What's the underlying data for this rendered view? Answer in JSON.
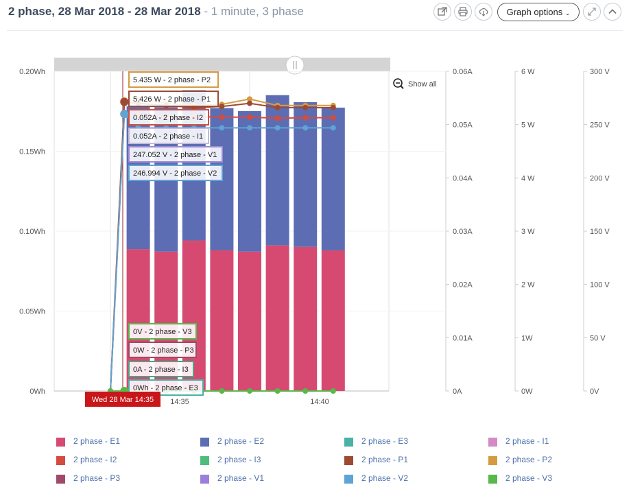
{
  "header": {
    "title_bold": "2 phase, 28 Mar 2018 - 28 Mar 2018",
    "title_light": " - 1 minute, 3 phase",
    "graph_options_label": "Graph options"
  },
  "chart_data": {
    "type": "bar",
    "x_tick_labels": [
      "14:35",
      "14:40"
    ],
    "crosshair_label": "Wed 28 Mar 14:35",
    "show_all_label": "Show all",
    "axes": [
      {
        "id": "energy",
        "ticks": [
          "0Wh",
          "0.05Wh",
          "0.10Wh",
          "0.15Wh",
          "0.20Wh"
        ],
        "ylim": [
          0,
          0.2
        ],
        "position": "left"
      },
      {
        "id": "current",
        "ticks": [
          "0A",
          "0.01A",
          "0.02A",
          "0.03A",
          "0.04A",
          "0.05A",
          "0.06A"
        ],
        "ylim": [
          0,
          0.06
        ],
        "position": "right"
      },
      {
        "id": "power",
        "ticks": [
          "0W",
          "1W",
          "2 W",
          "3 W",
          "4 W",
          "5 W",
          "6 W"
        ],
        "ylim": [
          0,
          6
        ],
        "position": "right"
      },
      {
        "id": "voltage",
        "ticks": [
          "0V",
          "50 V",
          "100 V",
          "150 V",
          "200 V",
          "250 V",
          "300 V"
        ],
        "ylim": [
          0,
          300
        ],
        "position": "right"
      }
    ],
    "x_minutes": [
      14.0,
      14.5,
      15,
      16,
      17,
      18,
      19,
      20,
      21,
      22
    ],
    "stacked_bars": [
      {
        "name": "2 phase - E1",
        "axis": "energy",
        "color": "#d64a72",
        "values": [
          0,
          0,
          0.0888,
          0.0872,
          0.0942,
          0.088,
          0.0872,
          0.0911,
          0.0902,
          0.088
        ]
      },
      {
        "name": "2 phase - E2",
        "axis": "energy",
        "color": "#5c6db3",
        "values": [
          0,
          0,
          0.0893,
          0.0904,
          0.094,
          0.089,
          0.0879,
          0.094,
          0.0905,
          0.0893
        ]
      }
    ],
    "lines": [
      {
        "name": "2 phase - P2",
        "axis": "power",
        "color": "#d59a42",
        "values": [
          0,
          5.435,
          5.48,
          5.4,
          5.36,
          5.38,
          5.48,
          5.36,
          5.36,
          5.36
        ]
      },
      {
        "name": "2 phase - P1",
        "axis": "power",
        "color": "#9e4a33",
        "values": [
          0,
          5.426,
          5.4,
          5.36,
          5.32,
          5.34,
          5.4,
          5.32,
          5.32,
          5.32
        ]
      },
      {
        "name": "2 phase - I2",
        "axis": "current",
        "color": "#d44c3e",
        "values": [
          0,
          0.052,
          0.0518,
          0.0515,
          0.0515,
          0.0514,
          0.0514,
          0.0512,
          0.0513,
          0.0513
        ]
      },
      {
        "name": "2 phase - I1",
        "axis": "current",
        "color": "#5ea4d4",
        "values": [
          0,
          0.052,
          0.0494,
          0.0494,
          0.0494,
          0.0494,
          0.0494,
          0.0494,
          0.0494,
          0.0494
        ]
      },
      {
        "name": "2 phase - V3",
        "axis": "voltage",
        "color": "#58b84a",
        "values": [
          0,
          0,
          0,
          0,
          0,
          0,
          0,
          0,
          0,
          0
        ]
      }
    ],
    "tooltips": [
      {
        "text": "5.435 W - 2 phase - P2",
        "color": "#d59a42"
      },
      {
        "text": "5.426 W - 2 phase - P1",
        "color": "#9e4a33"
      },
      {
        "text": "0.052A - 2 phase - I2",
        "color": "#d44c3e"
      },
      {
        "text": "0.052A - 2 phase - I1",
        "color": "#c5b9d6"
      },
      {
        "text": "247.052 V - 2 phase - V1",
        "color": "#a089d8"
      },
      {
        "text": "246.994 V - 2 phase - V2",
        "color": "#5ea4d4"
      },
      {
        "text": "0V - 2 phase - V3",
        "color": "#58b84a"
      },
      {
        "text": "0W - 2 phase - P3",
        "color": "#9e4a62"
      },
      {
        "text": "0A - 2 phase - I3",
        "color": "#4aa882"
      },
      {
        "text": "0Wh - 2 phase - E3",
        "color": "#4ab2a6"
      }
    ],
    "legend": [
      {
        "name": "2 phase - E1",
        "color": "#d64a72"
      },
      {
        "name": "2 phase - E2",
        "color": "#5c6db3"
      },
      {
        "name": "2 phase - E3",
        "color": "#4ab2a6"
      },
      {
        "name": "2 phase - I1",
        "color": "#d48ac6"
      },
      {
        "name": "2 phase - I2",
        "color": "#d44c3e"
      },
      {
        "name": "2 phase - I3",
        "color": "#4ebc7a"
      },
      {
        "name": "2 phase - P1",
        "color": "#9e4a33"
      },
      {
        "name": "2 phase - P2",
        "color": "#d59a42"
      },
      {
        "name": "2 phase - P3",
        "color": "#a04a6a"
      },
      {
        "name": "2 phase - V1",
        "color": "#9a80dc"
      },
      {
        "name": "2 phase - V2",
        "color": "#5ea4d4"
      },
      {
        "name": "2 phase - V3",
        "color": "#58b84a"
      }
    ]
  }
}
